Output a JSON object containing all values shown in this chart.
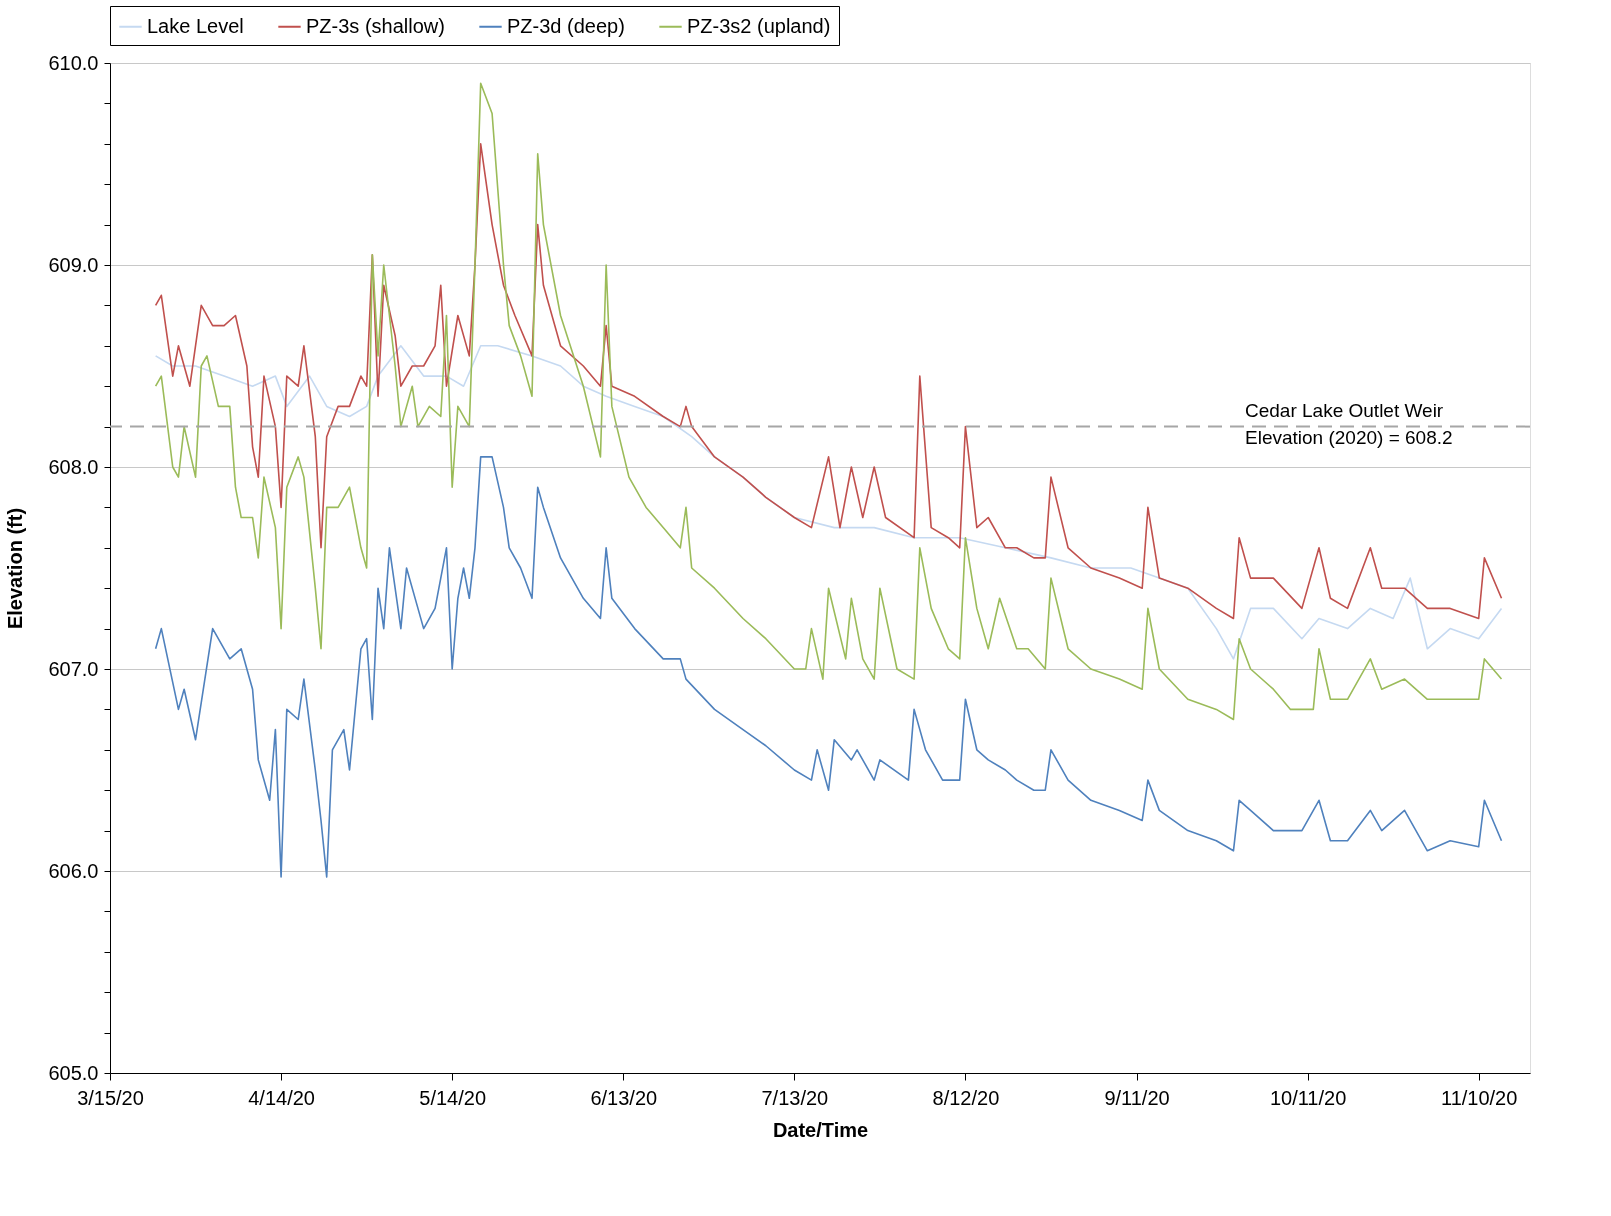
{
  "chart_data": {
    "type": "line",
    "xlabel": "Date/Time",
    "ylabel": "Elevation (ft)",
    "legend": "top",
    "grid": "y",
    "xlim": [
      "2020-03-15",
      "2020-11-19"
    ],
    "xticks": [
      {
        "value": "2020-03-15",
        "label": "3/15/20"
      },
      {
        "value": "2020-04-14",
        "label": "4/14/20"
      },
      {
        "value": "2020-05-14",
        "label": "5/14/20"
      },
      {
        "value": "2020-06-13",
        "label": "6/13/20"
      },
      {
        "value": "2020-07-13",
        "label": "7/13/20"
      },
      {
        "value": "2020-08-12",
        "label": "8/12/20"
      },
      {
        "value": "2020-09-11",
        "label": "9/11/20"
      },
      {
        "value": "2020-10-11",
        "label": "10/11/20"
      },
      {
        "value": "2020-11-10",
        "label": "11/10/20"
      }
    ],
    "ylim": [
      605,
      610
    ],
    "yticks": [
      {
        "value": 605,
        "label": "605.0"
      },
      {
        "value": 605.2,
        "label": null
      },
      {
        "value": 605.4,
        "label": null
      },
      {
        "value": 605.6,
        "label": null
      },
      {
        "value": 605.8,
        "label": null
      },
      {
        "value": 606,
        "label": "606.0"
      },
      {
        "value": 606.2,
        "label": null
      },
      {
        "value": 606.4,
        "label": null
      },
      {
        "value": 606.6,
        "label": null
      },
      {
        "value": 606.8,
        "label": null
      },
      {
        "value": 607,
        "label": "607.0"
      },
      {
        "value": 607.2,
        "label": null
      },
      {
        "value": 607.4,
        "label": null
      },
      {
        "value": 607.6,
        "label": null
      },
      {
        "value": 607.8,
        "label": null
      },
      {
        "value": 608,
        "label": "608.0"
      },
      {
        "value": 608.2,
        "label": null
      },
      {
        "value": 608.4,
        "label": null
      },
      {
        "value": 608.6,
        "label": null
      },
      {
        "value": 608.8,
        "label": null
      },
      {
        "value": 609,
        "label": "609.0"
      },
      {
        "value": 609.2,
        "label": null
      },
      {
        "value": 609.4,
        "label": null
      },
      {
        "value": 609.6,
        "label": null
      },
      {
        "value": 609.8,
        "label": null
      },
      {
        "value": 610,
        "label": "610.0"
      }
    ],
    "ref_lines": [
      {
        "axis": "y",
        "value": 608.2,
        "label": "Cedar Lake Outlet Weir\nElevation (2020) = 608.2",
        "color": "#a6a6a6",
        "line_style": "dashed"
      }
    ],
    "series": [
      {
        "name": "Lake Level",
        "color": "#c5d9f1",
        "x": [
          "2020-03-23",
          "2020-03-26",
          "2020-03-30",
          "2020-04-04",
          "2020-04-09",
          "2020-04-13",
          "2020-04-15",
          "2020-04-19",
          "2020-04-22",
          "2020-04-26",
          "2020-04-29",
          "2020-05-01",
          "2020-05-05",
          "2020-05-09",
          "2020-05-13",
          "2020-05-16",
          "2020-05-19",
          "2020-05-22",
          "2020-05-28",
          "2020-06-02",
          "2020-06-06",
          "2020-06-10",
          "2020-06-15",
          "2020-06-20",
          "2020-06-25",
          "2020-06-29",
          "2020-07-04",
          "2020-07-08",
          "2020-07-13",
          "2020-07-20",
          "2020-07-27",
          "2020-08-03",
          "2020-08-11",
          "2020-08-19",
          "2020-08-27",
          "2020-09-03",
          "2020-09-10",
          "2020-09-15",
          "2020-09-20",
          "2020-09-25",
          "2020-09-28",
          "2020-10-01",
          "2020-10-05",
          "2020-10-10",
          "2020-10-13",
          "2020-10-18",
          "2020-10-22",
          "2020-10-26",
          "2020-10-29",
          "2020-11-01",
          "2020-11-05",
          "2020-11-10",
          "2020-11-14"
        ],
        "values": [
          608.55,
          608.5,
          608.5,
          608.45,
          608.4,
          608.45,
          608.3,
          608.45,
          608.3,
          608.25,
          608.3,
          608.45,
          608.6,
          608.45,
          608.45,
          608.4,
          608.6,
          608.6,
          608.55,
          608.5,
          608.4,
          608.35,
          608.3,
          608.25,
          608.15,
          608.05,
          607.95,
          607.85,
          607.75,
          607.7,
          607.7,
          607.65,
          607.65,
          607.6,
          607.55,
          607.5,
          607.5,
          607.45,
          607.4,
          607.2,
          607.05,
          607.3,
          607.3,
          607.15,
          607.25,
          607.2,
          607.3,
          607.25,
          607.45,
          607.1,
          607.2,
          607.15,
          607.3
        ]
      },
      {
        "name": "PZ-3s (shallow)",
        "color": "#c0504d",
        "x": [
          "2020-03-23",
          "2020-03-24",
          "2020-03-26",
          "2020-03-27",
          "2020-03-29",
          "2020-03-31",
          "2020-04-02",
          "2020-04-04",
          "2020-04-06",
          "2020-04-08",
          "2020-04-09",
          "2020-04-10",
          "2020-04-11",
          "2020-04-13",
          "2020-04-14",
          "2020-04-15",
          "2020-04-17",
          "2020-04-18",
          "2020-04-20",
          "2020-04-21",
          "2020-04-22",
          "2020-04-24",
          "2020-04-26",
          "2020-04-28",
          "2020-04-29",
          "2020-04-30",
          "2020-05-01",
          "2020-05-02",
          "2020-05-04",
          "2020-05-05",
          "2020-05-07",
          "2020-05-09",
          "2020-05-11",
          "2020-05-12",
          "2020-05-13",
          "2020-05-15",
          "2020-05-17",
          "2020-05-18",
          "2020-05-19",
          "2020-05-21",
          "2020-05-23",
          "2020-05-25",
          "2020-05-28",
          "2020-05-29",
          "2020-05-30",
          "2020-06-02",
          "2020-06-06",
          "2020-06-09",
          "2020-06-10",
          "2020-06-11",
          "2020-06-15",
          "2020-06-20",
          "2020-06-23",
          "2020-06-24",
          "2020-06-25",
          "2020-06-29",
          "2020-07-04",
          "2020-07-08",
          "2020-07-13",
          "2020-07-16",
          "2020-07-19",
          "2020-07-21",
          "2020-07-23",
          "2020-07-25",
          "2020-07-27",
          "2020-07-29",
          "2020-08-03",
          "2020-08-04",
          "2020-08-06",
          "2020-08-09",
          "2020-08-11",
          "2020-08-12",
          "2020-08-14",
          "2020-08-16",
          "2020-08-19",
          "2020-08-21",
          "2020-08-24",
          "2020-08-26",
          "2020-08-27",
          "2020-08-30",
          "2020-09-03",
          "2020-09-08",
          "2020-09-12",
          "2020-09-13",
          "2020-09-15",
          "2020-09-20",
          "2020-09-25",
          "2020-09-28",
          "2020-09-29",
          "2020-10-01",
          "2020-10-05",
          "2020-10-10",
          "2020-10-13",
          "2020-10-15",
          "2020-10-18",
          "2020-10-22",
          "2020-10-24",
          "2020-10-28",
          "2020-11-01",
          "2020-11-05",
          "2020-11-10",
          "2020-11-11",
          "2020-11-14"
        ],
        "values": [
          608.8,
          608.85,
          608.45,
          608.6,
          608.4,
          608.8,
          608.7,
          608.7,
          608.75,
          608.5,
          608.1,
          607.95,
          608.45,
          608.2,
          607.8,
          608.45,
          608.4,
          608.6,
          608.15,
          607.6,
          608.15,
          608.3,
          608.3,
          608.45,
          608.4,
          609.05,
          608.35,
          608.9,
          608.65,
          608.4,
          608.5,
          608.5,
          608.6,
          608.9,
          608.4,
          608.75,
          608.55,
          609.0,
          609.6,
          609.2,
          608.9,
          608.75,
          608.55,
          609.2,
          608.9,
          608.6,
          608.5,
          608.4,
          608.7,
          608.4,
          608.35,
          608.25,
          608.2,
          608.3,
          608.2,
          608.05,
          607.95,
          607.85,
          607.75,
          607.7,
          608.05,
          607.7,
          608.0,
          607.75,
          608.0,
          607.75,
          607.65,
          608.45,
          607.7,
          607.65,
          607.6,
          608.2,
          607.7,
          607.75,
          607.6,
          607.6,
          607.55,
          607.55,
          607.95,
          607.6,
          607.5,
          607.45,
          607.4,
          607.8,
          607.45,
          607.4,
          607.3,
          607.25,
          607.65,
          607.45,
          607.45,
          607.3,
          607.6,
          607.35,
          607.3,
          607.6,
          607.4,
          607.4,
          607.3,
          607.3,
          607.25,
          607.55,
          607.35
        ]
      },
      {
        "name": "PZ-3d (deep)",
        "color": "#4f81bd",
        "x": [
          "2020-03-23",
          "2020-03-24",
          "2020-03-27",
          "2020-03-28",
          "2020-03-30",
          "2020-04-02",
          "2020-04-05",
          "2020-04-07",
          "2020-04-09",
          "2020-04-10",
          "2020-04-12",
          "2020-04-13",
          "2020-04-14",
          "2020-04-15",
          "2020-04-17",
          "2020-04-18",
          "2020-04-20",
          "2020-04-21",
          "2020-04-22",
          "2020-04-23",
          "2020-04-25",
          "2020-04-26",
          "2020-04-28",
          "2020-04-29",
          "2020-04-30",
          "2020-05-01",
          "2020-05-02",
          "2020-05-03",
          "2020-05-05",
          "2020-05-06",
          "2020-05-08",
          "2020-05-09",
          "2020-05-11",
          "2020-05-13",
          "2020-05-14",
          "2020-05-15",
          "2020-05-16",
          "2020-05-17",
          "2020-05-18",
          "2020-05-19",
          "2020-05-21",
          "2020-05-23",
          "2020-05-24",
          "2020-05-26",
          "2020-05-28",
          "2020-05-29",
          "2020-05-30",
          "2020-06-02",
          "2020-06-06",
          "2020-06-09",
          "2020-06-10",
          "2020-06-11",
          "2020-06-15",
          "2020-06-20",
          "2020-06-23",
          "2020-06-24",
          "2020-06-29",
          "2020-07-04",
          "2020-07-08",
          "2020-07-13",
          "2020-07-16",
          "2020-07-17",
          "2020-07-19",
          "2020-07-20",
          "2020-07-23",
          "2020-07-24",
          "2020-07-27",
          "2020-07-28",
          "2020-08-02",
          "2020-08-03",
          "2020-08-05",
          "2020-08-08",
          "2020-08-11",
          "2020-08-12",
          "2020-08-14",
          "2020-08-16",
          "2020-08-19",
          "2020-08-21",
          "2020-08-24",
          "2020-08-26",
          "2020-08-27",
          "2020-08-30",
          "2020-09-03",
          "2020-09-08",
          "2020-09-12",
          "2020-09-13",
          "2020-09-15",
          "2020-09-20",
          "2020-09-25",
          "2020-09-28",
          "2020-09-29",
          "2020-10-01",
          "2020-10-05",
          "2020-10-10",
          "2020-10-13",
          "2020-10-15",
          "2020-10-18",
          "2020-10-22",
          "2020-10-24",
          "2020-10-28",
          "2020-11-01",
          "2020-11-05",
          "2020-11-10",
          "2020-11-11",
          "2020-11-14"
        ],
        "values": [
          607.1,
          607.2,
          606.8,
          606.9,
          606.65,
          607.2,
          607.05,
          607.1,
          606.9,
          606.55,
          606.35,
          606.7,
          605.97,
          606.8,
          606.75,
          606.95,
          606.5,
          606.25,
          605.97,
          606.6,
          606.7,
          606.5,
          607.1,
          607.15,
          606.75,
          607.4,
          607.2,
          607.6,
          607.2,
          607.5,
          607.3,
          607.2,
          607.3,
          607.6,
          607.0,
          607.35,
          607.5,
          607.35,
          607.6,
          608.05,
          608.05,
          607.8,
          607.6,
          607.5,
          607.35,
          607.9,
          607.8,
          607.55,
          607.35,
          607.25,
          607.6,
          607.35,
          607.2,
          607.05,
          607.05,
          606.95,
          606.8,
          606.7,
          606.62,
          606.5,
          606.45,
          606.6,
          606.4,
          606.65,
          606.55,
          606.6,
          606.45,
          606.55,
          606.45,
          606.8,
          606.6,
          606.45,
          606.45,
          606.85,
          606.6,
          606.55,
          606.5,
          606.45,
          606.4,
          606.4,
          606.6,
          606.45,
          606.35,
          606.3,
          606.25,
          606.45,
          606.3,
          606.2,
          606.15,
          606.1,
          606.35,
          606.3,
          606.2,
          606.2,
          606.35,
          606.15,
          606.15,
          606.3,
          606.2,
          606.3,
          606.1,
          606.15,
          606.12,
          606.35,
          606.15
        ]
      },
      {
        "name": "PZ-3s2 (upland)",
        "color": "#9bbb59",
        "x": [
          "2020-03-23",
          "2020-03-24",
          "2020-03-26",
          "2020-03-27",
          "2020-03-28",
          "2020-03-30",
          "2020-03-31",
          "2020-04-01",
          "2020-04-03",
          "2020-04-05",
          "2020-04-06",
          "2020-04-07",
          "2020-04-09",
          "2020-04-10",
          "2020-04-11",
          "2020-04-13",
          "2020-04-14",
          "2020-04-15",
          "2020-04-17",
          "2020-04-18",
          "2020-04-20",
          "2020-04-21",
          "2020-04-22",
          "2020-04-24",
          "2020-04-26",
          "2020-04-28",
          "2020-04-29",
          "2020-04-30",
          "2020-05-01",
          "2020-05-02",
          "2020-05-04",
          "2020-05-05",
          "2020-05-07",
          "2020-05-08",
          "2020-05-10",
          "2020-05-12",
          "2020-05-13",
          "2020-05-14",
          "2020-05-15",
          "2020-05-17",
          "2020-05-18",
          "2020-05-19",
          "2020-05-21",
          "2020-05-23",
          "2020-05-24",
          "2020-05-26",
          "2020-05-28",
          "2020-05-29",
          "2020-05-30",
          "2020-06-02",
          "2020-06-06",
          "2020-06-09",
          "2020-06-10",
          "2020-06-11",
          "2020-06-14",
          "2020-06-17",
          "2020-06-20",
          "2020-06-23",
          "2020-06-24",
          "2020-06-25",
          "2020-06-29",
          "2020-07-04",
          "2020-07-08",
          "2020-07-13",
          "2020-07-15",
          "2020-07-16",
          "2020-07-18",
          "2020-07-19",
          "2020-07-22",
          "2020-07-23",
          "2020-07-25",
          "2020-07-27",
          "2020-07-28",
          "2020-07-31",
          "2020-08-03",
          "2020-08-04",
          "2020-08-06",
          "2020-08-09",
          "2020-08-11",
          "2020-08-12",
          "2020-08-14",
          "2020-08-16",
          "2020-08-18",
          "2020-08-21",
          "2020-08-23",
          "2020-08-26",
          "2020-08-27",
          "2020-08-30",
          "2020-09-03",
          "2020-09-08",
          "2020-09-12",
          "2020-09-13",
          "2020-09-15",
          "2020-09-20",
          "2020-09-25",
          "2020-09-28",
          "2020-09-29",
          "2020-10-01",
          "2020-10-05",
          "2020-10-08",
          "2020-10-12",
          "2020-10-13",
          "2020-10-15",
          "2020-10-18",
          "2020-10-22",
          "2020-10-24",
          "2020-10-28",
          "2020-11-01",
          "2020-11-05",
          "2020-11-10",
          "2020-11-11",
          "2020-11-14"
        ],
        "values": [
          608.4,
          608.45,
          608.0,
          607.95,
          608.2,
          607.95,
          608.5,
          608.55,
          608.3,
          608.3,
          607.9,
          607.75,
          607.75,
          607.55,
          607.95,
          607.7,
          607.2,
          607.9,
          608.05,
          607.95,
          607.4,
          607.1,
          607.8,
          607.8,
          607.9,
          607.6,
          607.5,
          609.05,
          608.55,
          609.0,
          608.5,
          608.2,
          608.4,
          608.2,
          608.3,
          608.25,
          608.75,
          607.9,
          608.3,
          608.2,
          609.0,
          609.9,
          609.75,
          609.0,
          608.7,
          608.55,
          608.35,
          609.55,
          609.2,
          608.75,
          608.4,
          608.05,
          609.0,
          608.3,
          607.95,
          607.8,
          607.7,
          607.6,
          607.8,
          607.5,
          607.4,
          607.25,
          607.15,
          607.0,
          607.0,
          607.2,
          606.95,
          607.4,
          607.05,
          607.35,
          607.05,
          606.95,
          607.4,
          607.0,
          606.95,
          607.6,
          607.3,
          607.1,
          607.05,
          607.65,
          607.3,
          607.1,
          607.35,
          607.1,
          607.1,
          607.0,
          607.45,
          607.1,
          607.0,
          606.95,
          606.9,
          607.3,
          607.0,
          606.85,
          606.8,
          606.75,
          607.15,
          607.0,
          606.9,
          606.8,
          606.8,
          607.1,
          606.85,
          606.85,
          607.05,
          606.9,
          606.95,
          606.85,
          606.85,
          606.85,
          607.05,
          606.95
        ]
      }
    ]
  }
}
